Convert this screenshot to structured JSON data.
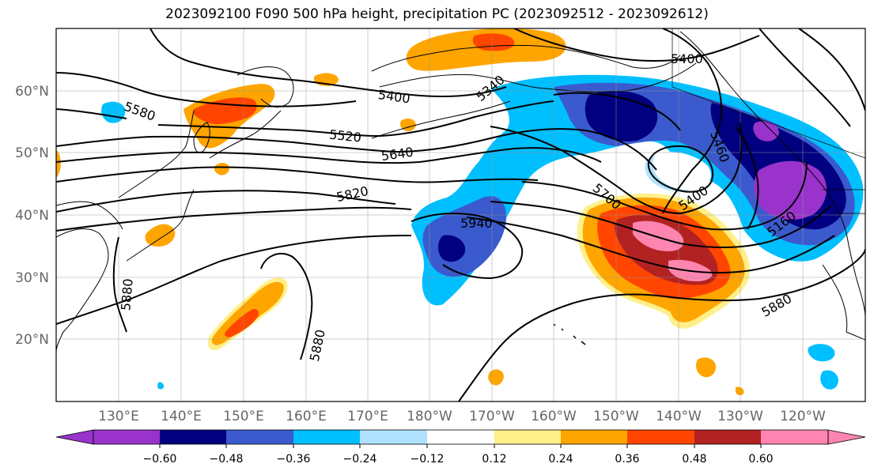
{
  "title": "2023092100 F090 500 hPa height, precipitation PC (2023092512 - 2023092612)",
  "lat_labels": [
    "60°N",
    "50°N",
    "40°N",
    "30°N",
    "20°N"
  ],
  "lon_labels": [
    "130°E",
    "140°E",
    "150°E",
    "160°E",
    "170°E",
    "180°W",
    "170°W",
    "160°W",
    "150°W",
    "140°W",
    "130°W",
    "120°W"
  ],
  "height_contour_labels": [
    "5400",
    "5340",
    "5400",
    "5580",
    "5520",
    "5640",
    "5820",
    "5940",
    "5700",
    "5400",
    "5460",
    "5160",
    "5880",
    "5880",
    "5880"
  ],
  "colorbar": {
    "colors": [
      "#9933cc",
      "#000080",
      "#3a5acd",
      "#00bfff",
      "#b0e2ff",
      "#ffffff",
      "#fff08a",
      "#ffa500",
      "#ff4500",
      "#b22222",
      "#ff85b0",
      "#ff85b0"
    ],
    "under_color": "#9933cc",
    "over_color": "#ff85b0",
    "ticks": [
      "−0.60",
      "−0.48",
      "−0.36",
      "−0.24",
      "−0.12",
      "0.12",
      "0.24",
      "0.36",
      "0.48",
      "0.60"
    ]
  }
}
